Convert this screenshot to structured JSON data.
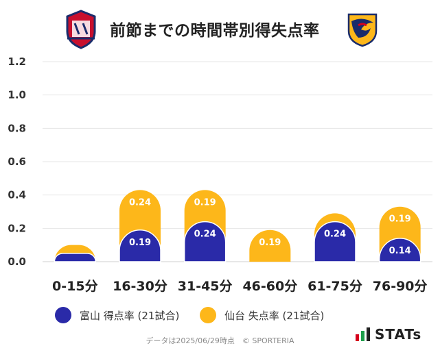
{
  "header": {
    "title": "前節までの時間帯別得失点率",
    "home_badge": "toyama-crest-icon",
    "away_badge": "sendai-crest-icon"
  },
  "chart_data": {
    "type": "bar",
    "stacked": true,
    "categories": [
      "0-15分",
      "16-30分",
      "31-45分",
      "46-60分",
      "61-75分",
      "76-90分"
    ],
    "series": [
      {
        "name": "富山 得点率 (21試合)",
        "color": "#2a2aa8",
        "values": [
          0.05,
          0.19,
          0.24,
          0.0,
          0.24,
          0.14
        ],
        "labels": [
          "",
          "0.19",
          "0.24",
          "",
          "0.24",
          "0.14"
        ]
      },
      {
        "name": "仙台 失点率 (21試合)",
        "color": "#fdb71a",
        "values": [
          0.05,
          0.24,
          0.19,
          0.19,
          0.05,
          0.19
        ],
        "labels": [
          "",
          "0.24",
          "0.19",
          "0.19",
          "",
          "0.19"
        ]
      }
    ],
    "ylim": [
      0,
      1.2
    ],
    "yticks": [
      "0.0",
      "0.2",
      "0.4",
      "0.6",
      "0.8",
      "1.0",
      "1.2"
    ],
    "grid": true
  },
  "legend": {
    "home_label": "富山 得点率 (21試合)",
    "away_label": "仙台 失点率 (21試合)"
  },
  "footer": {
    "text": "データは2025/06/29時点　© SPORTERIA",
    "brand": "STATs"
  }
}
